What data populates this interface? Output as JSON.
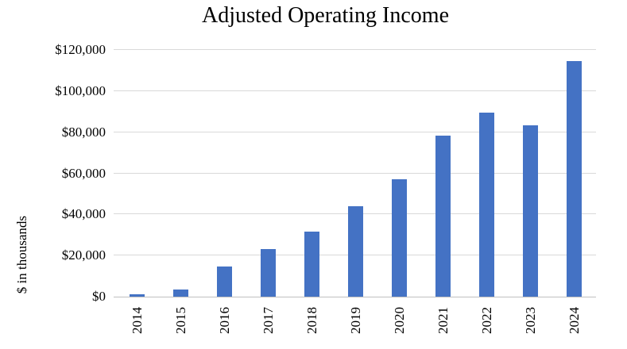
{
  "chart_data": {
    "type": "bar",
    "title": "Adjusted Operating Income",
    "xlabel": "",
    "ylabel": "$ in thousands",
    "categories": [
      "2014",
      "2015",
      "2016",
      "2017",
      "2018",
      "2019",
      "2020",
      "2021",
      "2022",
      "2023",
      "2024"
    ],
    "values": [
      1000,
      3500,
      14500,
      23000,
      31500,
      44000,
      57000,
      78500,
      89500,
      83500,
      114500
    ],
    "y_ticks": [
      "$0",
      "$20,000",
      "$40,000",
      "$60,000",
      "$80,000",
      "$100,000",
      "$120,000"
    ],
    "ylim": [
      0,
      120000
    ],
    "grid": true,
    "legend_position": "none",
    "bar_color": "#4472C4",
    "gridline_color": "#D9D9D9",
    "axis_line_color": "#BFBFBF",
    "text_color": "#000000"
  }
}
